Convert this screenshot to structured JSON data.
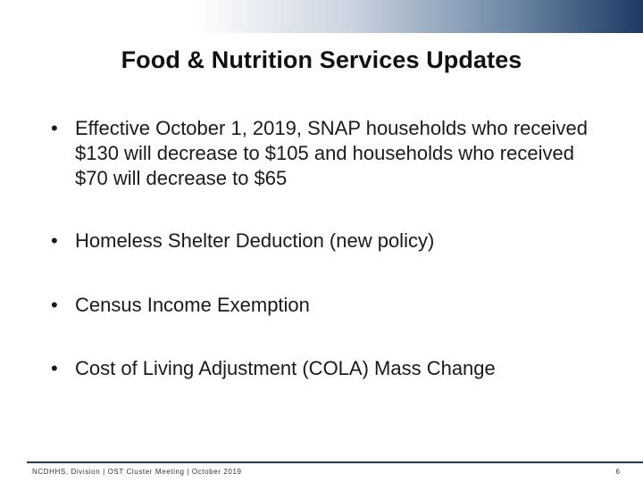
{
  "slide": {
    "title": "Food & Nutrition Services Updates",
    "bullet_symbol": "•",
    "bullets": [
      "Effective October 1, 2019, SNAP households who received $130 will decrease to $105 and households who received $70 will decrease to $65",
      "Homeless Shelter Deduction (new policy)",
      "Census Income Exemption",
      "Cost of Living Adjustment (COLA) Mass Change"
    ]
  },
  "footer": {
    "text": "NCDHHS, Division | OST Cluster Meeting | October 2019",
    "page_number": "6"
  },
  "colors": {
    "band_dark": "#1d3a63",
    "band_mid": "#6d86a4",
    "text": "#1a1a1a"
  }
}
